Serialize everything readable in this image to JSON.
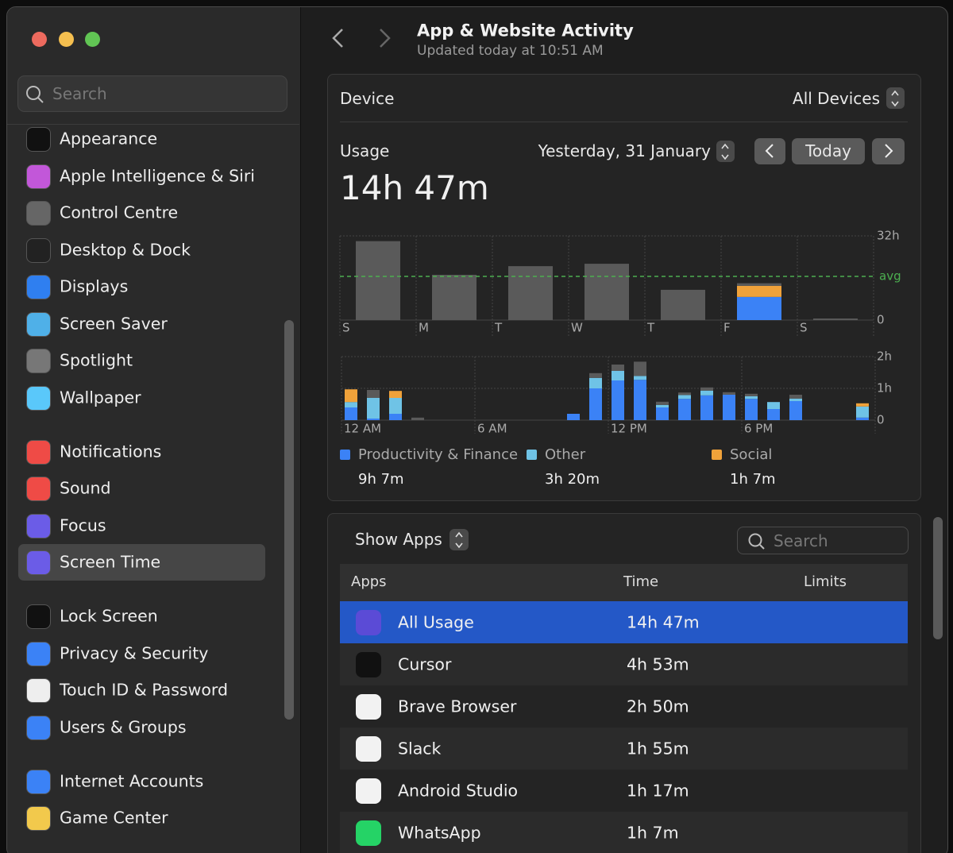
{
  "sidebar": {
    "search": "Search",
    "groups": [
      [
        "Appearance",
        "Apple Intelligence & Siri",
        "Control Centre",
        "Desktop & Dock",
        "Displays",
        "Screen Saver",
        "Spotlight",
        "Wallpaper"
      ],
      [
        "Notifications",
        "Sound",
        "Focus",
        "Screen Time"
      ],
      [
        "Lock Screen",
        "Privacy & Security",
        "Touch ID & Password",
        "Users & Groups"
      ],
      [
        "Internet Accounts",
        "Game Center"
      ]
    ],
    "selected": [
      1,
      3
    ]
  },
  "header": {
    "title": "App & Website Activity",
    "subtitle": "Updated today at 10:51 AM"
  },
  "device": {
    "label": "Device",
    "value": "All Devices"
  },
  "usage": {
    "label": "Usage",
    "date": "Yesterday, 31 January",
    "today": "Today",
    "total": "14h 47m"
  },
  "chart_data": [
    {
      "type": "bar",
      "stacked": true,
      "categories": [
        "S",
        "M",
        "T",
        "W",
        "T",
        "F",
        "S"
      ],
      "series": [
        {
          "color": "#3b82f6",
          "values": [
            0,
            0,
            0,
            0,
            0,
            8.8,
            0
          ]
        },
        {
          "color": "#f0a23a",
          "values": [
            0,
            0,
            0,
            0,
            0,
            4.2,
            0
          ]
        },
        {
          "color": "#5a5a5a",
          "values": [
            30,
            17.2,
            20.5,
            21.4,
            11.5,
            1,
            0.6
          ]
        }
      ],
      "ylim": [
        0,
        32
      ],
      "yticks": [
        0,
        {
          "value": 32,
          "label": "32h"
        }
      ],
      "avg": {
        "value": 16.6,
        "label": "avg",
        "color": "#4caf50"
      }
    },
    {
      "type": "bar",
      "stacked": true,
      "categories": [
        "12 AM",
        null,
        null,
        null,
        null,
        null,
        "6 AM",
        null,
        null,
        null,
        null,
        null,
        "12 PM",
        null,
        null,
        null,
        null,
        null,
        "6 PM",
        null,
        null,
        null,
        null,
        null
      ],
      "series": [
        {
          "name": "Productivity & Finance",
          "total": "9h 7m",
          "color": "#3b82f6",
          "values": [
            0.4,
            0.05,
            0.2,
            0,
            0,
            0,
            0,
            0,
            0,
            0,
            0.2,
            1.0,
            1.25,
            1.27,
            0.4,
            0.67,
            0.78,
            0.8,
            0.67,
            0.35,
            0.6,
            0,
            0,
            0.08
          ]
        },
        {
          "name": "Other",
          "total": "3h 20m",
          "color": "#6fc3e6",
          "values": [
            0.17,
            0.65,
            0.5,
            0,
            0,
            0,
            0,
            0,
            0,
            0,
            0,
            0.33,
            0.3,
            0.12,
            0.08,
            0.12,
            0.15,
            0,
            0.08,
            0.22,
            0.08,
            0,
            0,
            0.35
          ]
        },
        {
          "name": "Social",
          "total": "1h 7m",
          "color": "#f0a23a",
          "values": [
            0.4,
            0,
            0.22,
            0,
            0,
            0,
            0,
            0,
            0,
            0,
            0,
            0,
            0,
            0,
            0,
            0,
            0,
            0,
            0,
            0,
            0,
            0,
            0,
            0.1
          ]
        },
        {
          "color": "#5a5a5a",
          "values": [
            0,
            0.25,
            0,
            0.08,
            0,
            0,
            0,
            0,
            0,
            0,
            0,
            0.15,
            0.2,
            0.45,
            0.1,
            0.08,
            0.1,
            0.08,
            0.08,
            0,
            0.12,
            0,
            0,
            0
          ]
        }
      ],
      "ylim": [
        0,
        2
      ],
      "yticks": [
        0,
        {
          "value": 1,
          "label": "1h"
        },
        {
          "value": 2,
          "label": "2h"
        }
      ]
    }
  ],
  "apps": {
    "show": "Show Apps",
    "search": "Search",
    "columns": [
      "Apps",
      "Time",
      "Limits"
    ],
    "rows": [
      [
        "All Usage",
        "14h 47m"
      ],
      [
        "Cursor",
        "4h 53m"
      ],
      [
        "Brave Browser",
        "2h 50m"
      ],
      [
        "Slack",
        "1h 55m"
      ],
      [
        "Android Studio",
        "1h 17m"
      ],
      [
        "WhatsApp",
        "1h 7m"
      ]
    ]
  }
}
